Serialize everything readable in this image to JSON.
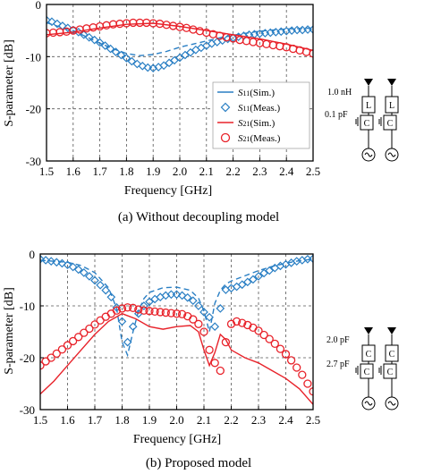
{
  "chart_data": [
    {
      "type": "line",
      "caption": "(a) Without decoupling model",
      "xlabel": "Frequency [GHz]",
      "ylabel": "S-parameter [dB]",
      "xlim": [
        1.5,
        2.5
      ],
      "ylim": [
        -30,
        0
      ],
      "xticks": [
        "1.5",
        "1.6",
        "1.7",
        "1.8",
        "1.9",
        "2.0",
        "2.1",
        "2.2",
        "2.3",
        "2.4",
        "2.5"
      ],
      "yticks": [
        "0",
        "-10",
        "-20",
        "-30"
      ],
      "grid": true,
      "legend_position": "center-right",
      "legend": [
        {
          "sym": "S",
          "sub": "11",
          "text": "(Sim.)",
          "style": "line",
          "color": "#2a7fc4"
        },
        {
          "sym": "S",
          "sub": "11",
          "text": "(Meas.)",
          "style": "diamond",
          "color": "#2a7fc4"
        },
        {
          "sym": "S",
          "sub": "21",
          "text": "(Sim.)",
          "style": "line",
          "color": "#e8222a"
        },
        {
          "sym": "S",
          "sub": "21",
          "text": "(Meas.)",
          "style": "circle",
          "color": "#e8222a"
        }
      ],
      "series": [
        {
          "key": "S11_sim",
          "color": "#2a7fc4",
          "style": "dashed",
          "x": [
            1.5,
            1.55,
            1.6,
            1.65,
            1.7,
            1.75,
            1.8,
            1.85,
            1.9,
            1.95,
            2.0,
            2.05,
            2.1,
            2.15,
            2.2,
            2.25,
            2.3,
            2.35,
            2.4,
            2.45,
            2.5
          ],
          "y": [
            -3.5,
            -4.3,
            -5.0,
            -6.2,
            -7.4,
            -8.5,
            -9.4,
            -9.8,
            -9.6,
            -9.0,
            -8.2,
            -7.6,
            -7.0,
            -6.4,
            -5.9,
            -5.5,
            -5.1,
            -4.9,
            -4.7,
            -4.6,
            -4.5
          ]
        },
        {
          "key": "S11_meas",
          "color": "#2a7fc4",
          "style": "diamond",
          "x": [
            1.5,
            1.52,
            1.54,
            1.56,
            1.58,
            1.6,
            1.62,
            1.64,
            1.66,
            1.68,
            1.7,
            1.72,
            1.74,
            1.76,
            1.78,
            1.8,
            1.82,
            1.84,
            1.86,
            1.88,
            1.9,
            1.92,
            1.94,
            1.96,
            1.98,
            2.0,
            2.02,
            2.04,
            2.06,
            2.08,
            2.1,
            2.12,
            2.14,
            2.16,
            2.18,
            2.2,
            2.22,
            2.24,
            2.26,
            2.28,
            2.3,
            2.32,
            2.34,
            2.36,
            2.38,
            2.4,
            2.42,
            2.44,
            2.46,
            2.48,
            2.5
          ],
          "y": [
            -3.0,
            -3.3,
            -3.7,
            -4.1,
            -4.5,
            -4.9,
            -5.3,
            -5.8,
            -6.3,
            -6.8,
            -7.3,
            -7.9,
            -8.5,
            -9.1,
            -9.7,
            -10.3,
            -10.9,
            -11.4,
            -11.8,
            -12.1,
            -12.2,
            -12.0,
            -11.7,
            -11.2,
            -10.7,
            -10.2,
            -9.7,
            -9.2,
            -8.7,
            -8.3,
            -7.9,
            -7.5,
            -7.2,
            -6.9,
            -6.6,
            -6.4,
            -6.2,
            -6.0,
            -5.8,
            -5.7,
            -5.6,
            -5.5,
            -5.4,
            -5.3,
            -5.2,
            -5.1,
            -5.0,
            -4.9,
            -4.9,
            -4.8,
            -4.8
          ]
        },
        {
          "key": "S21_sim",
          "color": "#e8222a",
          "style": "solid",
          "x": [
            1.5,
            1.6,
            1.7,
            1.8,
            1.9,
            2.0,
            2.1,
            2.2,
            2.3,
            2.4,
            2.5
          ],
          "y": [
            -5.8,
            -5.3,
            -4.5,
            -3.8,
            -3.6,
            -4.2,
            -5.0,
            -5.8,
            -6.6,
            -7.6,
            -8.8
          ]
        },
        {
          "key": "S21_meas",
          "color": "#e8222a",
          "style": "circle",
          "x": [
            1.5,
            1.525,
            1.55,
            1.575,
            1.6,
            1.625,
            1.65,
            1.675,
            1.7,
            1.725,
            1.75,
            1.775,
            1.8,
            1.825,
            1.85,
            1.875,
            1.9,
            1.925,
            1.95,
            1.975,
            2.0,
            2.025,
            2.05,
            2.075,
            2.1,
            2.125,
            2.15,
            2.175,
            2.2,
            2.225,
            2.25,
            2.275,
            2.3,
            2.325,
            2.35,
            2.375,
            2.4,
            2.425,
            2.45,
            2.475,
            2.5
          ],
          "y": [
            -5.5,
            -5.4,
            -5.3,
            -5.2,
            -5.0,
            -4.8,
            -4.6,
            -4.4,
            -4.2,
            -4.0,
            -3.8,
            -3.7,
            -3.6,
            -3.5,
            -3.5,
            -3.5,
            -3.6,
            -3.7,
            -3.9,
            -4.1,
            -4.3,
            -4.5,
            -4.8,
            -5.1,
            -5.4,
            -5.7,
            -6.0,
            -6.3,
            -6.5,
            -6.8,
            -7.0,
            -7.2,
            -7.4,
            -7.6,
            -7.8,
            -8.0,
            -8.2,
            -8.5,
            -8.8,
            -9.1,
            -9.4
          ]
        }
      ],
      "circuit": {
        "top_value": "1.0 nH",
        "bottom_value": "0.1 pF",
        "top_element": "L",
        "bottom_element": "C"
      }
    },
    {
      "type": "line",
      "caption": "(b) Proposed model",
      "xlabel": "Frequency [GHz]",
      "ylabel": "S-parameter [dB]",
      "xlim": [
        1.5,
        2.5
      ],
      "ylim": [
        -30,
        0
      ],
      "xticks": [
        "1.5",
        "1.6",
        "1.7",
        "1.8",
        "1.9",
        "2.0",
        "2.1",
        "2.2",
        "2.3",
        "2.4",
        "2.5"
      ],
      "yticks": [
        "0",
        "-10",
        "-20",
        "-30"
      ],
      "grid": true,
      "series": [
        {
          "key": "S11_sim",
          "color": "#2a7fc4",
          "style": "dashed",
          "x": [
            1.5,
            1.6,
            1.65,
            1.7,
            1.75,
            1.78,
            1.8,
            1.82,
            1.84,
            1.86,
            1.88,
            1.9,
            1.95,
            2.0,
            2.05,
            2.08,
            2.1,
            2.12,
            2.14,
            2.16,
            2.18,
            2.2,
            2.25,
            2.3,
            2.35,
            2.4,
            2.45,
            2.5
          ],
          "y": [
            -1.2,
            -1.6,
            -2.2,
            -3.6,
            -6.5,
            -10.5,
            -17,
            -19.5,
            -15,
            -11,
            -8.6,
            -7.4,
            -6.5,
            -6.4,
            -7.0,
            -8.5,
            -11,
            -15,
            -9.5,
            -7.0,
            -5.8,
            -5.2,
            -4.2,
            -3.2,
            -2.4,
            -1.8,
            -1.3,
            -1.0
          ]
        },
        {
          "key": "S11_meas",
          "color": "#2a7fc4",
          "style": "diamond",
          "x": [
            1.5,
            1.52,
            1.54,
            1.56,
            1.58,
            1.6,
            1.62,
            1.64,
            1.66,
            1.68,
            1.7,
            1.72,
            1.74,
            1.76,
            1.78,
            1.8,
            1.82,
            1.84,
            1.86,
            1.88,
            1.9,
            1.92,
            1.94,
            1.96,
            1.98,
            2.0,
            2.02,
            2.04,
            2.06,
            2.08,
            2.1,
            2.12,
            2.14,
            2.16,
            2.18,
            2.2,
            2.22,
            2.24,
            2.26,
            2.28,
            2.3,
            2.32,
            2.34,
            2.36,
            2.38,
            2.4,
            2.42,
            2.44,
            2.46,
            2.48,
            2.5
          ],
          "y": [
            -1.0,
            -1.2,
            -1.4,
            -1.6,
            -1.8,
            -2.1,
            -2.5,
            -3.0,
            -3.6,
            -4.3,
            -5.1,
            -6.0,
            -7.0,
            -8.3,
            -10.3,
            -13,
            -17,
            -14,
            -11.5,
            -10,
            -9.2,
            -8.7,
            -8.3,
            -8.0,
            -7.8,
            -7.8,
            -8.0,
            -8.4,
            -9.0,
            -10,
            -11.2,
            -12.2,
            -14,
            -10.5,
            -6.9,
            -6.6,
            -6.3,
            -5.9,
            -5.4,
            -4.9,
            -4.3,
            -3.7,
            -3.2,
            -2.7,
            -2.3,
            -2.0,
            -1.7,
            -1.4,
            -1.2,
            -1.0,
            -0.9
          ]
        },
        {
          "key": "S21_sim",
          "color": "#e8222a",
          "style": "solid",
          "x": [
            1.5,
            1.55,
            1.6,
            1.65,
            1.7,
            1.75,
            1.8,
            1.85,
            1.9,
            1.95,
            2.0,
            2.05,
            2.08,
            2.1,
            2.12,
            2.14,
            2.16,
            2.18,
            2.2,
            2.25,
            2.3,
            2.35,
            2.4,
            2.45,
            2.5
          ],
          "y": [
            -27,
            -24.5,
            -21.5,
            -18.5,
            -15.5,
            -13,
            -11.5,
            -12.5,
            -14,
            -14.5,
            -14,
            -13.8,
            -15,
            -18.5,
            -21.5,
            -19,
            -15.5,
            -16.5,
            -18.5,
            -20,
            -21,
            -22.5,
            -24,
            -26,
            -29
          ]
        },
        {
          "key": "S21_meas",
          "color": "#e8222a",
          "style": "circle",
          "x": [
            1.5,
            1.52,
            1.54,
            1.56,
            1.58,
            1.6,
            1.62,
            1.64,
            1.66,
            1.68,
            1.7,
            1.72,
            1.74,
            1.76,
            1.78,
            1.8,
            1.82,
            1.84,
            1.86,
            1.88,
            1.9,
            1.92,
            1.94,
            1.96,
            1.98,
            2.0,
            2.02,
            2.04,
            2.06,
            2.08,
            2.1,
            2.12,
            2.14,
            2.16,
            2.18,
            2.2,
            2.22,
            2.24,
            2.26,
            2.28,
            2.3,
            2.32,
            2.34,
            2.36,
            2.38,
            2.4,
            2.42,
            2.44,
            2.46,
            2.48,
            2.5
          ],
          "y": [
            -21.5,
            -20.7,
            -20.0,
            -19.2,
            -18.4,
            -17.6,
            -16.8,
            -16.0,
            -15.2,
            -14.4,
            -13.6,
            -12.8,
            -12.1,
            -11.5,
            -10.9,
            -10.5,
            -10.3,
            -10.4,
            -10.7,
            -10.9,
            -11.0,
            -11.1,
            -11.2,
            -11.3,
            -11.4,
            -11.5,
            -11.6,
            -12.0,
            -12.6,
            -13.5,
            -15,
            -18.5,
            -21,
            -22.5,
            -17,
            -13.5,
            -13.0,
            -13.3,
            -13.7,
            -14.2,
            -14.8,
            -15.6,
            -16.4,
            -17.3,
            -18.3,
            -19.3,
            -20.5,
            -21.9,
            -23.3,
            -25.0,
            -26.5
          ]
        }
      ],
      "circuit": {
        "top_value": "2.0 pF",
        "bottom_value": "2.7 pF",
        "top_element": "C",
        "bottom_element": "C"
      }
    }
  ]
}
